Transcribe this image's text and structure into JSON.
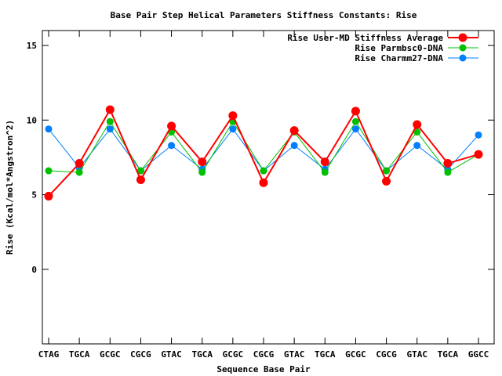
{
  "chart_data": {
    "type": "line",
    "title": "Base Pair Step Helical Parameters Stiffness Constants: Rise",
    "xlabel": "Sequence Base Pair",
    "ylabel": "Rise (Kcal/mol*Angstron^2)",
    "categories": [
      "CTAG",
      "TGCA",
      "GCGC",
      "CGCG",
      "GTAC",
      "TGCA",
      "GCGC",
      "CGCG",
      "GTAC",
      "TGCA",
      "GCGC",
      "CGCG",
      "GTAC",
      "TGCA",
      "GGCC"
    ],
    "ylim": [
      -5,
      16
    ],
    "yticks": [
      0,
      5,
      10,
      15
    ],
    "grid": false,
    "legend_position": "top-right",
    "series": [
      {
        "name": "Rise User-MD Stiffness Average",
        "color": "#ff0000",
        "values": [
          4.9,
          7.1,
          10.7,
          6.0,
          9.6,
          7.2,
          10.3,
          5.8,
          9.3,
          7.2,
          10.6,
          5.9,
          9.7,
          7.1,
          7.7
        ]
      },
      {
        "name": "Rise Parmbsc0-DNA",
        "color": "#00c000",
        "values": [
          6.6,
          6.5,
          9.9,
          6.6,
          9.2,
          6.5,
          9.9,
          6.6,
          9.2,
          6.5,
          9.9,
          6.6,
          9.2,
          6.5,
          7.7
        ]
      },
      {
        "name": "Rise Charmm27-DNA",
        "color": "#0080ff",
        "values": [
          9.4,
          6.8,
          9.4,
          6.6,
          8.3,
          6.7,
          9.4,
          6.6,
          8.3,
          6.7,
          9.4,
          6.6,
          8.3,
          6.7,
          9.0
        ]
      }
    ]
  }
}
